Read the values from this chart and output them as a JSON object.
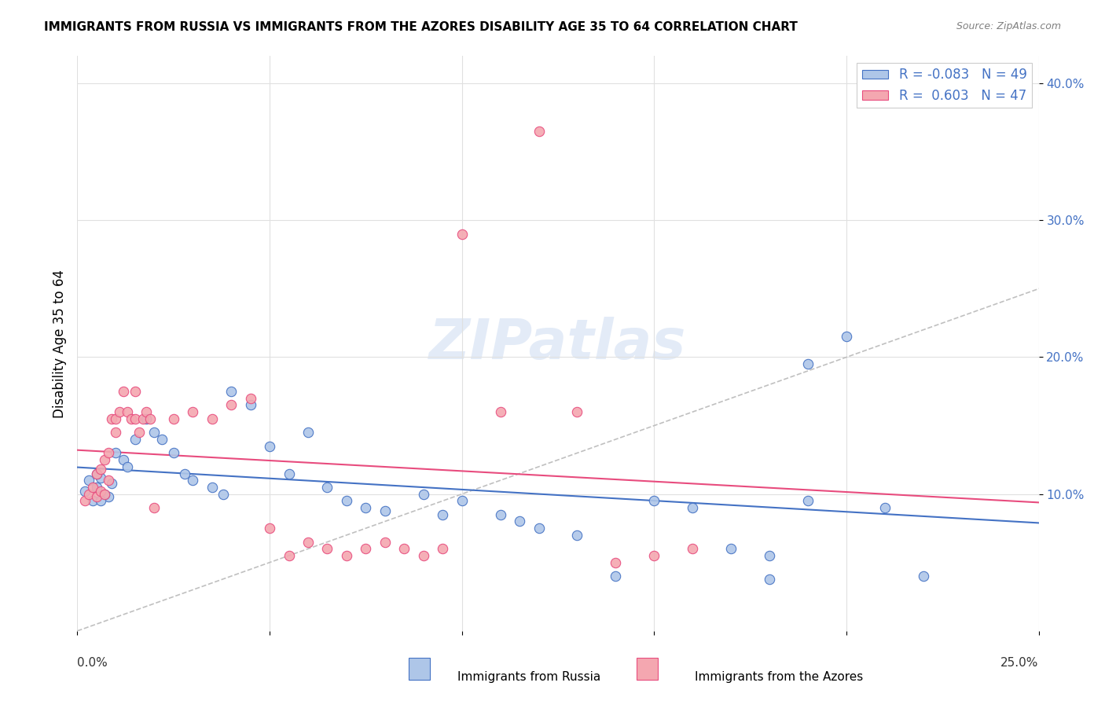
{
  "title": "IMMIGRANTS FROM RUSSIA VS IMMIGRANTS FROM THE AZORES DISABILITY AGE 35 TO 64 CORRELATION CHART",
  "source": "Source: ZipAtlas.com",
  "ylabel": "Disability Age 35 to 64",
  "yticks": [
    0.1,
    0.2,
    0.3,
    0.4
  ],
  "ytick_labels": [
    "10.0%",
    "20.0%",
    "30.0%",
    "40.0%"
  ],
  "xlim": [
    0.0,
    0.25
  ],
  "ylim": [
    0.0,
    0.42
  ],
  "legend_russia": "R = -0.083   N = 49",
  "legend_azores": "R =  0.603   N = 47",
  "russia_color": "#aec6e8",
  "azores_color": "#f4a7b0",
  "russia_line_color": "#4472c4",
  "azores_line_color": "#e84c7e",
  "diagonal_color": "#c0c0c0",
  "watermark": "ZIPatlas",
  "russia_scatter_x": [
    0.005,
    0.008,
    0.003,
    0.006,
    0.004,
    0.007,
    0.009,
    0.002,
    0.005,
    0.006,
    0.01,
    0.012,
    0.015,
    0.018,
    0.013,
    0.02,
    0.022,
    0.025,
    0.028,
    0.03,
    0.035,
    0.038,
    0.04,
    0.045,
    0.05,
    0.055,
    0.06,
    0.065,
    0.07,
    0.075,
    0.08,
    0.09,
    0.095,
    0.1,
    0.11,
    0.115,
    0.12,
    0.13,
    0.14,
    0.15,
    0.16,
    0.17,
    0.18,
    0.19,
    0.2,
    0.21,
    0.22,
    0.18,
    0.19
  ],
  "russia_scatter_y": [
    0.105,
    0.098,
    0.11,
    0.112,
    0.095,
    0.1,
    0.108,
    0.102,
    0.115,
    0.095,
    0.13,
    0.125,
    0.14,
    0.155,
    0.12,
    0.145,
    0.14,
    0.13,
    0.115,
    0.11,
    0.105,
    0.1,
    0.175,
    0.165,
    0.135,
    0.115,
    0.145,
    0.105,
    0.095,
    0.09,
    0.088,
    0.1,
    0.085,
    0.095,
    0.085,
    0.08,
    0.075,
    0.07,
    0.04,
    0.095,
    0.09,
    0.06,
    0.038,
    0.095,
    0.215,
    0.09,
    0.04,
    0.055,
    0.195
  ],
  "azores_scatter_x": [
    0.002,
    0.003,
    0.004,
    0.005,
    0.005,
    0.006,
    0.006,
    0.007,
    0.007,
    0.008,
    0.008,
    0.009,
    0.01,
    0.01,
    0.011,
    0.012,
    0.013,
    0.014,
    0.015,
    0.015,
    0.016,
    0.017,
    0.018,
    0.019,
    0.02,
    0.025,
    0.03,
    0.035,
    0.04,
    0.045,
    0.05,
    0.055,
    0.06,
    0.065,
    0.07,
    0.075,
    0.08,
    0.085,
    0.09,
    0.095,
    0.1,
    0.11,
    0.12,
    0.13,
    0.14,
    0.15,
    0.16
  ],
  "azores_scatter_y": [
    0.095,
    0.1,
    0.105,
    0.098,
    0.115,
    0.102,
    0.118,
    0.125,
    0.1,
    0.13,
    0.11,
    0.155,
    0.145,
    0.155,
    0.16,
    0.175,
    0.16,
    0.155,
    0.155,
    0.175,
    0.145,
    0.155,
    0.16,
    0.155,
    0.09,
    0.155,
    0.16,
    0.155,
    0.165,
    0.17,
    0.075,
    0.055,
    0.065,
    0.06,
    0.055,
    0.06,
    0.065,
    0.06,
    0.055,
    0.06,
    0.29,
    0.16,
    0.365,
    0.16,
    0.05,
    0.055,
    0.06
  ]
}
